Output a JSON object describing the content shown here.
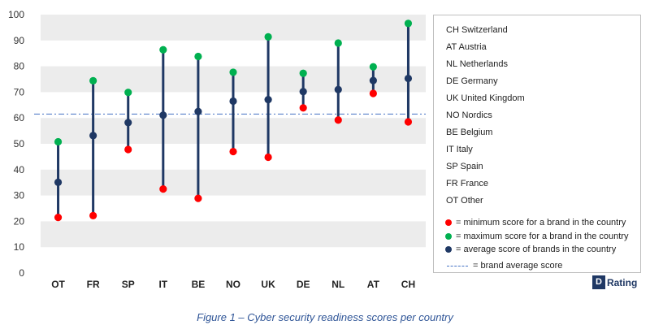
{
  "chart_data": {
    "type": "dot-range",
    "categories": [
      "OT",
      "FR",
      "SP",
      "IT",
      "BE",
      "NO",
      "UK",
      "DE",
      "NL",
      "AT",
      "CH"
    ],
    "series": [
      {
        "name": "minimum score for a brand in the country",
        "values": [
          21.5,
          22.2,
          47.8,
          32.5,
          28.9,
          47,
          44.8,
          63.9,
          59.2,
          69.5,
          58.5
        ],
        "color": "#ff0000"
      },
      {
        "name": "maximum score for a brand in the country",
        "values": [
          50.8,
          74.4,
          69.9,
          86.4,
          83.8,
          77.7,
          91.4,
          77.3,
          89,
          79.8,
          96.6
        ],
        "color": "#00b050"
      },
      {
        "name": "average score of brands in the country",
        "values": [
          35.1,
          53.2,
          58.2,
          61.1,
          62.5,
          66.5,
          67.1,
          70.2,
          71,
          74.5,
          75.3
        ],
        "color": "#1f3864"
      }
    ],
    "reference_line": {
      "name": "brand average score",
      "value": 61.5,
      "color": "#4472c4",
      "style": "dash-dot"
    },
    "ylim": [
      0,
      100
    ],
    "yticks": [
      0,
      10,
      20,
      30,
      40,
      50,
      60,
      70,
      80,
      90,
      100
    ],
    "grid": "alternating horizontal bands",
    "legend_position": "right",
    "title": "",
    "xlabel": "",
    "ylabel": ""
  },
  "legend": {
    "countries": [
      "CH Switzerland",
      "AT Austria",
      "NL Netherlands",
      "DE Germany",
      "UK United Kingdom",
      "NO Nordics",
      "BE Belgium",
      "IT Italy",
      "SP Spain",
      "FR France",
      "OT Other"
    ],
    "keys": {
      "min": "= minimum score for a brand in the country",
      "max": "= maximum score for a brand in the country",
      "avg": "= average score of brands in the country",
      "ref": "= brand average score"
    }
  },
  "logo": {
    "mark": "D",
    "word": "Rating"
  },
  "caption": "Figure 1 – Cyber security readiness scores per country",
  "colors": {
    "band": "#ececec",
    "stem": "#1f3864",
    "min": "#ff0000",
    "max": "#00b050",
    "avg": "#1f3864",
    "reference": "#4472c4"
  }
}
